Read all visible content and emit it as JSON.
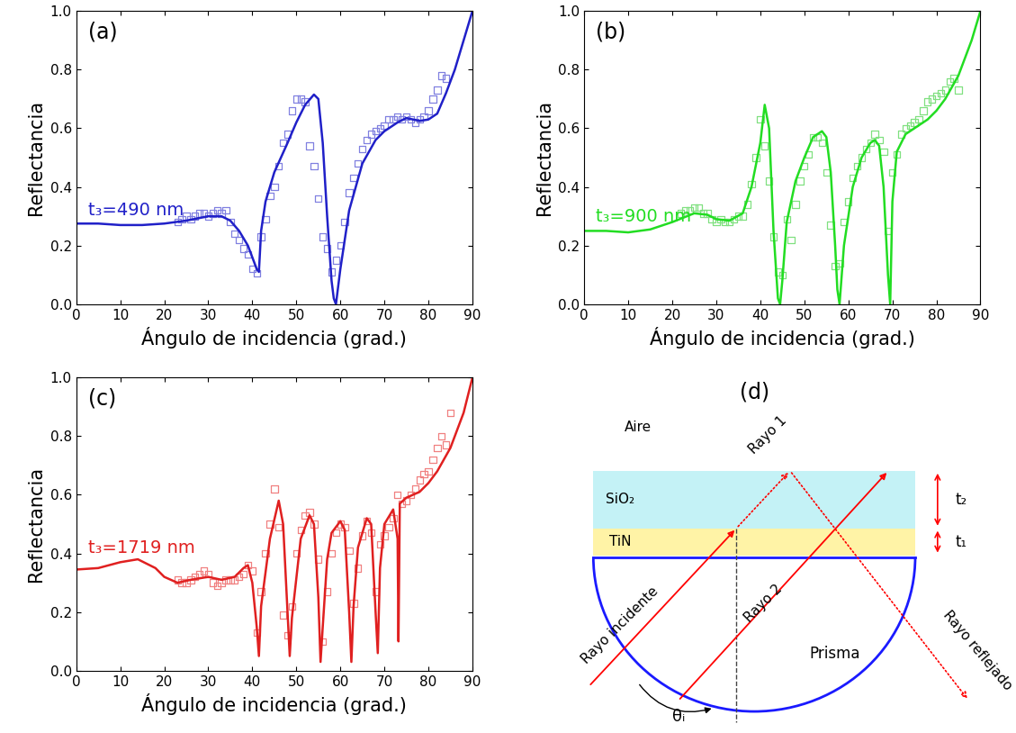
{
  "chart_data": [
    {
      "type": "line",
      "panel": "(a)",
      "xlabel": "Ángulo de incidencia (grad.)",
      "ylabel": "Reflectancia",
      "xlim": [
        0,
        90
      ],
      "xticks": [
        0,
        10,
        20,
        30,
        40,
        50,
        60,
        70,
        80,
        90
      ],
      "ylim": [
        0.0,
        1.0
      ],
      "yticks": [
        0.0,
        0.2,
        0.4,
        0.6,
        0.8,
        1.0
      ],
      "annotations": [
        {
          "text": "t₃=490 nm"
        }
      ],
      "series": [
        {
          "type": "line",
          "color": "#2020c8",
          "line_style": "solid",
          "x": [
            0,
            5,
            10,
            15,
            20,
            25,
            30,
            33,
            35,
            37,
            39,
            40,
            41,
            41.5,
            42,
            43,
            45,
            48,
            50,
            52,
            54,
            55,
            56,
            57,
            58,
            58.5,
            59,
            60,
            62,
            65,
            68,
            70,
            73,
            75,
            78,
            80,
            82,
            84,
            86,
            88,
            90
          ],
          "values": [
            0.275,
            0.275,
            0.27,
            0.27,
            0.275,
            0.285,
            0.3,
            0.3,
            0.285,
            0.25,
            0.2,
            0.16,
            0.12,
            0.11,
            0.25,
            0.35,
            0.45,
            0.55,
            0.62,
            0.68,
            0.715,
            0.7,
            0.55,
            0.3,
            0.08,
            0.02,
            0.0,
            0.12,
            0.32,
            0.48,
            0.56,
            0.59,
            0.62,
            0.635,
            0.625,
            0.63,
            0.65,
            0.72,
            0.8,
            0.9,
            1.0
          ]
        },
        {
          "type": "scatter",
          "color": "#8080e0",
          "marker": "square",
          "x": [
            23,
            24,
            25,
            26,
            27,
            28,
            29,
            30,
            31,
            32,
            33,
            34,
            35,
            36,
            37,
            38,
            39,
            40,
            41,
            42,
            43,
            44,
            45,
            46,
            47,
            48,
            49,
            50,
            51,
            52,
            53,
            54,
            55,
            56,
            57,
            58,
            59,
            60,
            61,
            62,
            63,
            64,
            65,
            66,
            67,
            68,
            69,
            70,
            71,
            72,
            73,
            74,
            75,
            76,
            77,
            78,
            79,
            80,
            81,
            82,
            83,
            84
          ],
          "values": [
            0.28,
            0.29,
            0.3,
            0.29,
            0.3,
            0.31,
            0.31,
            0.3,
            0.31,
            0.32,
            0.31,
            0.32,
            0.28,
            0.24,
            0.22,
            0.19,
            0.17,
            0.12,
            0.105,
            0.23,
            0.29,
            0.37,
            0.4,
            0.47,
            0.55,
            0.58,
            0.66,
            0.7,
            0.7,
            0.69,
            0.54,
            0.47,
            0.36,
            0.23,
            0.19,
            0.11,
            0.15,
            0.2,
            0.28,
            0.38,
            0.43,
            0.48,
            0.53,
            0.56,
            0.58,
            0.59,
            0.6,
            0.61,
            0.63,
            0.63,
            0.64,
            0.63,
            0.64,
            0.63,
            0.62,
            0.63,
            0.64,
            0.66,
            0.7,
            0.73,
            0.78,
            0.77
          ]
        }
      ]
    },
    {
      "type": "line",
      "panel": "(b)",
      "xlabel": "Ángulo de incidencia (grad.)",
      "ylabel": "Reflectancia",
      "xlim": [
        0,
        90
      ],
      "xticks": [
        0,
        10,
        20,
        30,
        40,
        50,
        60,
        70,
        80,
        90
      ],
      "ylim": [
        0.0,
        1.0
      ],
      "yticks": [
        0.0,
        0.2,
        0.4,
        0.6,
        0.8,
        1.0
      ],
      "annotations": [
        {
          "text": "t₃=900 nm"
        }
      ],
      "series": [
        {
          "type": "line",
          "color": "#22dd22",
          "line_style": "solid",
          "x": [
            0,
            5,
            10,
            15,
            20,
            25,
            28,
            30,
            33,
            36,
            38,
            40,
            41,
            42,
            43,
            44,
            44.5,
            45,
            46,
            48,
            50,
            52,
            54,
            55,
            56,
            57,
            57.5,
            58,
            59,
            61,
            63,
            65,
            66,
            67,
            68,
            69,
            69.5,
            70,
            71,
            73,
            75,
            78,
            80,
            82,
            85,
            88,
            90
          ],
          "values": [
            0.25,
            0.25,
            0.245,
            0.255,
            0.28,
            0.31,
            0.305,
            0.29,
            0.285,
            0.31,
            0.4,
            0.55,
            0.68,
            0.6,
            0.25,
            0.02,
            0.0,
            0.08,
            0.28,
            0.42,
            0.5,
            0.57,
            0.59,
            0.57,
            0.45,
            0.2,
            0.05,
            0.0,
            0.2,
            0.4,
            0.5,
            0.55,
            0.56,
            0.54,
            0.4,
            0.1,
            0.0,
            0.35,
            0.52,
            0.58,
            0.6,
            0.63,
            0.66,
            0.7,
            0.78,
            0.9,
            1.0
          ]
        },
        {
          "type": "scatter",
          "color": "#80e080",
          "marker": "square",
          "x": [
            22,
            23,
            24,
            25,
            26,
            27,
            28,
            29,
            30,
            31,
            32,
            33,
            34,
            35,
            36,
            37,
            38,
            39,
            40,
            41,
            42,
            43,
            44,
            45,
            46,
            47,
            48,
            49,
            50,
            51,
            52,
            53,
            54,
            55,
            56,
            57,
            58,
            59,
            60,
            61,
            62,
            63,
            64,
            65,
            66,
            67,
            68,
            69,
            70,
            71,
            72,
            73,
            74,
            75,
            76,
            77,
            78,
            79,
            80,
            81,
            82,
            83,
            84,
            85
          ],
          "values": [
            0.31,
            0.32,
            0.32,
            0.33,
            0.33,
            0.31,
            0.31,
            0.29,
            0.28,
            0.29,
            0.28,
            0.28,
            0.29,
            0.3,
            0.3,
            0.34,
            0.41,
            0.5,
            0.63,
            0.54,
            0.42,
            0.23,
            0.11,
            0.1,
            0.29,
            0.22,
            0.34,
            0.42,
            0.47,
            0.51,
            0.57,
            0.57,
            0.55,
            0.45,
            0.27,
            0.13,
            0.14,
            0.28,
            0.35,
            0.43,
            0.47,
            0.5,
            0.53,
            0.55,
            0.58,
            0.56,
            0.52,
            0.25,
            0.45,
            0.51,
            0.58,
            0.6,
            0.61,
            0.62,
            0.63,
            0.66,
            0.69,
            0.7,
            0.71,
            0.72,
            0.73,
            0.76,
            0.77,
            0.73
          ]
        }
      ]
    },
    {
      "type": "line",
      "panel": "(c)",
      "xlabel": "Ángulo de incidencia (grad.)",
      "ylabel": "Reflectancia",
      "xlim": [
        0,
        90
      ],
      "xticks": [
        0,
        10,
        20,
        30,
        40,
        50,
        60,
        70,
        80,
        90
      ],
      "ylim": [
        0.0,
        1.0
      ],
      "yticks": [
        0.0,
        0.2,
        0.4,
        0.6,
        0.8,
        1.0
      ],
      "annotations": [
        {
          "text": "t₃=1719 nm"
        }
      ],
      "series": [
        {
          "type": "line",
          "color": "#e02020",
          "line_style": "solid",
          "x": [
            0,
            5,
            10,
            14,
            18,
            20,
            23,
            26,
            30,
            33,
            36,
            38,
            39,
            40,
            41,
            41.5,
            42,
            44,
            46,
            47,
            48,
            48.5,
            49,
            51,
            53,
            54,
            55,
            55.5,
            56,
            57,
            58,
            60,
            61,
            62,
            62.5,
            63,
            64,
            66,
            67,
            68,
            68.5,
            69,
            70,
            72,
            73,
            73.2,
            73.5,
            75,
            78,
            80,
            82,
            85,
            88,
            90
          ],
          "values": [
            0.345,
            0.35,
            0.37,
            0.38,
            0.35,
            0.32,
            0.3,
            0.31,
            0.32,
            0.31,
            0.32,
            0.35,
            0.36,
            0.3,
            0.15,
            0.05,
            0.22,
            0.45,
            0.58,
            0.5,
            0.2,
            0.05,
            0.18,
            0.45,
            0.53,
            0.5,
            0.25,
            0.03,
            0.15,
            0.38,
            0.47,
            0.51,
            0.48,
            0.2,
            0.03,
            0.22,
            0.42,
            0.52,
            0.5,
            0.2,
            0.06,
            0.35,
            0.5,
            0.55,
            0.45,
            0.1,
            0.57,
            0.59,
            0.61,
            0.64,
            0.68,
            0.76,
            0.88,
            1.0
          ]
        },
        {
          "type": "scatter",
          "color": "#f08080",
          "marker": "square",
          "x": [
            23,
            24,
            25,
            26,
            27,
            28,
            29,
            30,
            31,
            32,
            33,
            34,
            35,
            36,
            37,
            38,
            39,
            40,
            41,
            42,
            43,
            44,
            45,
            46,
            47,
            48,
            49,
            50,
            51,
            52,
            53,
            54,
            55,
            56,
            57,
            58,
            59,
            60,
            61,
            62,
            63,
            64,
            65,
            66,
            67,
            68,
            69,
            70,
            71,
            72,
            73,
            74,
            75,
            76,
            77,
            78,
            79,
            80,
            81,
            82,
            83,
            84,
            85
          ],
          "values": [
            0.31,
            0.3,
            0.3,
            0.31,
            0.32,
            0.33,
            0.34,
            0.33,
            0.3,
            0.29,
            0.3,
            0.31,
            0.31,
            0.31,
            0.32,
            0.33,
            0.36,
            0.34,
            0.13,
            0.27,
            0.4,
            0.5,
            0.62,
            0.49,
            0.19,
            0.12,
            0.22,
            0.4,
            0.48,
            0.53,
            0.54,
            0.5,
            0.38,
            0.1,
            0.27,
            0.4,
            0.47,
            0.5,
            0.49,
            0.41,
            0.23,
            0.35,
            0.46,
            0.51,
            0.47,
            0.27,
            0.43,
            0.46,
            0.49,
            0.52,
            0.6,
            0.57,
            0.58,
            0.6,
            0.62,
            0.65,
            0.67,
            0.68,
            0.72,
            0.76,
            0.8,
            0.77,
            0.88
          ]
        }
      ]
    }
  ],
  "diagram": {
    "panel": "(d)",
    "layers": {
      "air": "Aire",
      "sio2": "SiO₂",
      "tin": "TiN",
      "prism": "Prisma"
    },
    "rays": {
      "ray1": "Rayo 1",
      "ray2": "Rayo 2",
      "incident": "Rayo incidente",
      "reflected": "Rayo reflejado"
    },
    "thickness": {
      "t2": "t₂",
      "t1": "t₁"
    },
    "angle": "θᵢ"
  }
}
